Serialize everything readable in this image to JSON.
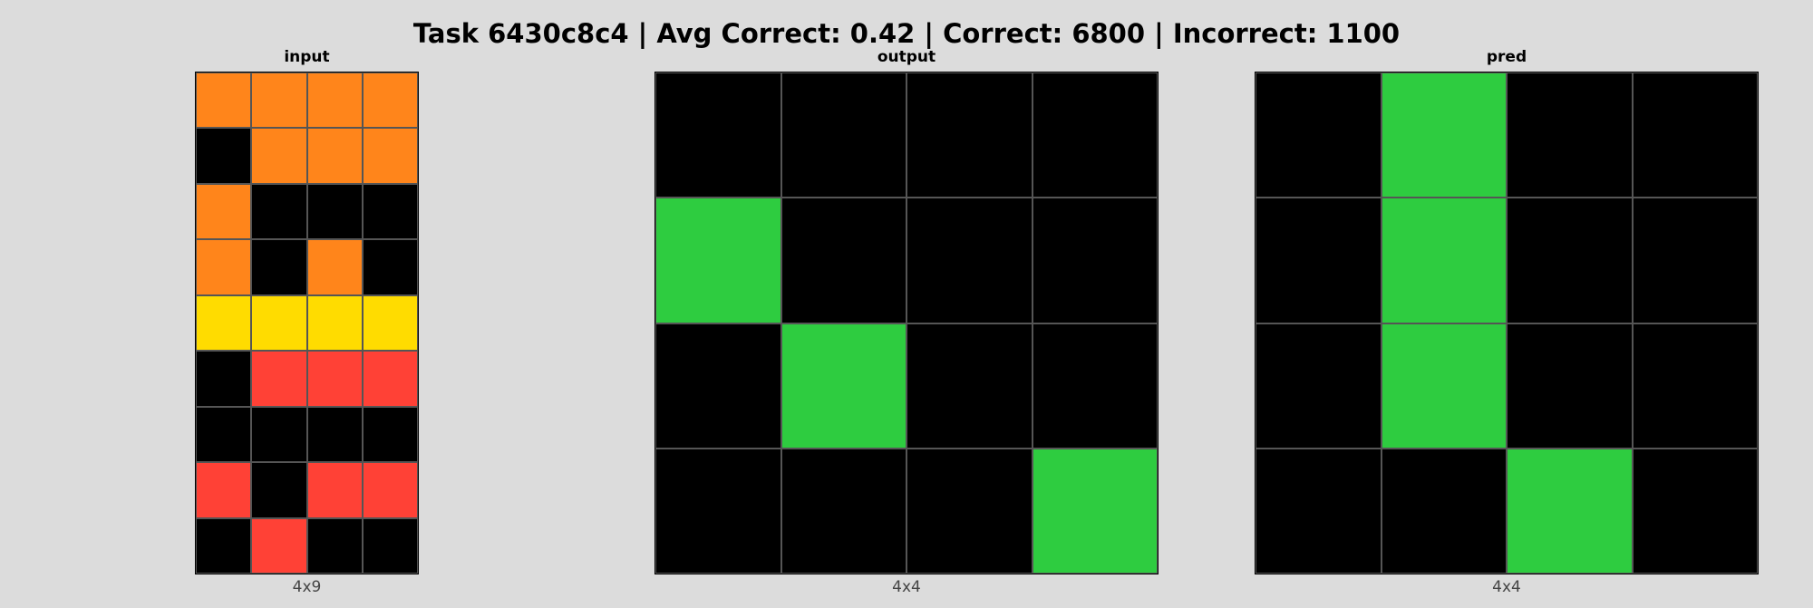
{
  "title": "Task 6430c8c4 | Avg Correct: 0.42 | Correct: 6800 | Incorrect: 1100",
  "palette": {
    "0": "#000000",
    "2": "#ff4136",
    "3": "#2ecc40",
    "4": "#ffdc00",
    "7": "#ff851b"
  },
  "panels": [
    {
      "label": "input",
      "dims": "4x9",
      "grid": [
        [
          7,
          7,
          7,
          7
        ],
        [
          0,
          7,
          7,
          7
        ],
        [
          7,
          0,
          0,
          0
        ],
        [
          7,
          0,
          7,
          0
        ],
        [
          4,
          4,
          4,
          4
        ],
        [
          0,
          2,
          2,
          2
        ],
        [
          0,
          0,
          0,
          0
        ],
        [
          2,
          0,
          2,
          2
        ],
        [
          0,
          2,
          0,
          0
        ]
      ]
    },
    {
      "label": "output",
      "dims": "4x4",
      "grid": [
        [
          0,
          0,
          0,
          0
        ],
        [
          3,
          0,
          0,
          0
        ],
        [
          0,
          3,
          0,
          0
        ],
        [
          0,
          0,
          0,
          3
        ]
      ]
    },
    {
      "label": "pred",
      "dims": "4x4",
      "grid": [
        [
          0,
          3,
          0,
          0
        ],
        [
          0,
          3,
          0,
          0
        ],
        [
          0,
          3,
          0,
          0
        ],
        [
          0,
          0,
          3,
          0
        ]
      ]
    }
  ]
}
